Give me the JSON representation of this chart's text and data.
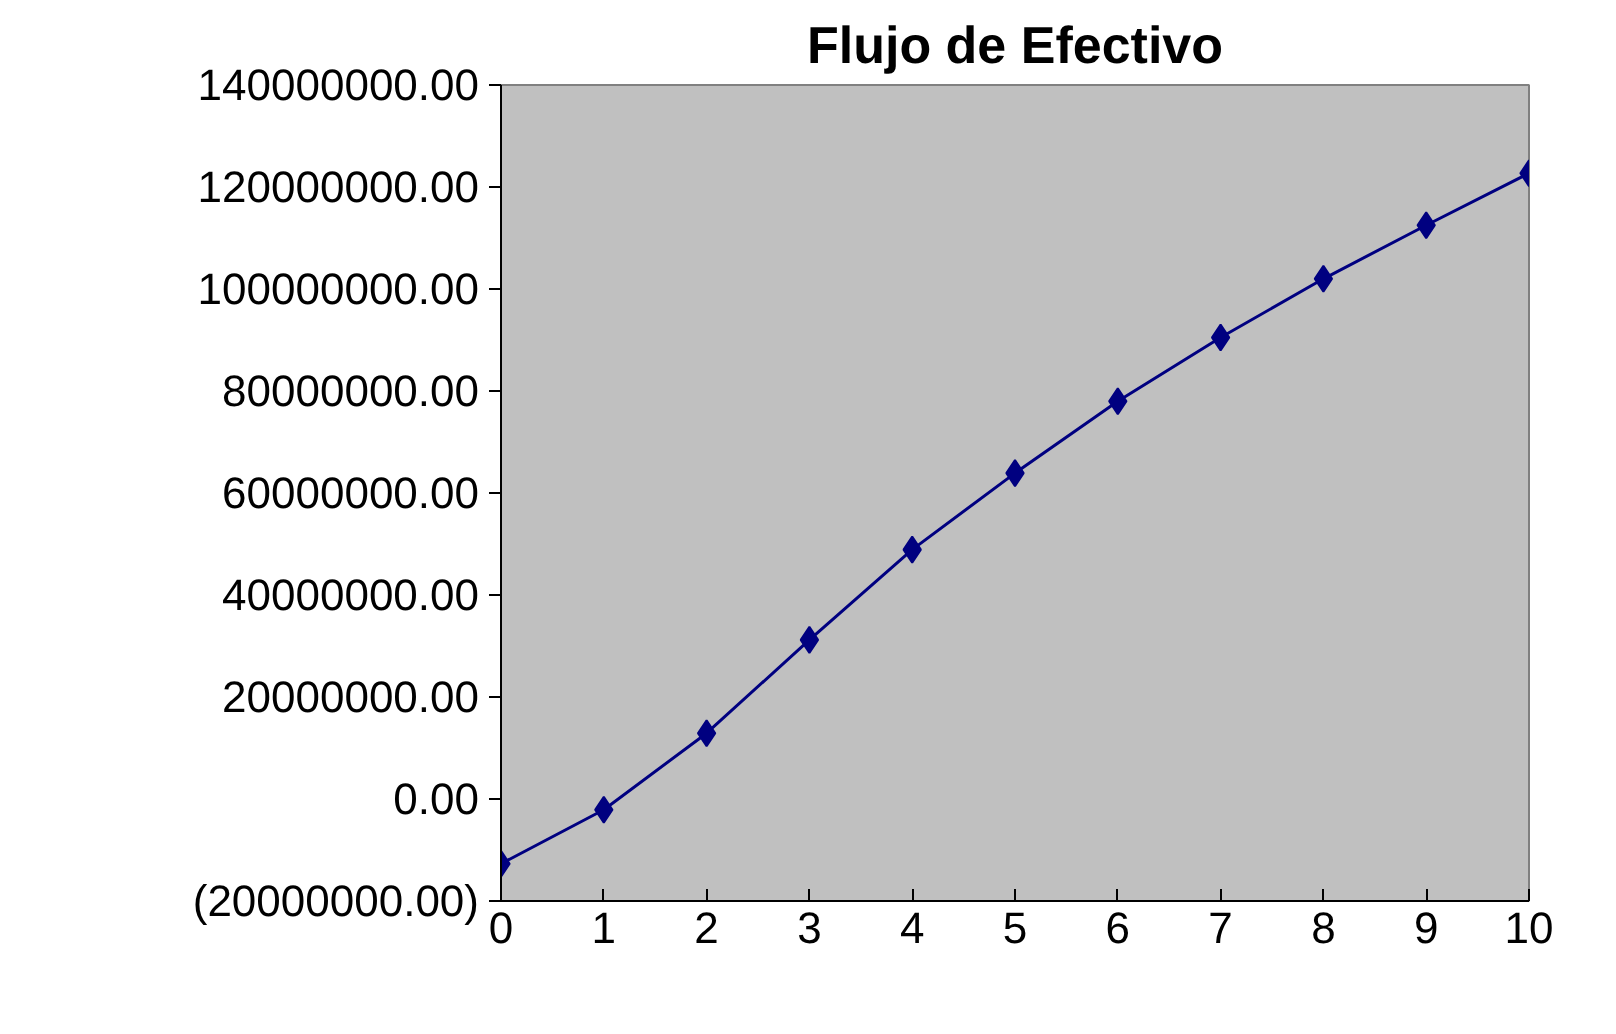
{
  "chart_data": {
    "type": "line",
    "title": "Flujo de Efectivo",
    "x": [
      0,
      1,
      2,
      3,
      4,
      5,
      6,
      7,
      8,
      9,
      10
    ],
    "series": [
      {
        "color": "#000080",
        "values": [
          -12700000,
          -2100000,
          12900000,
          31200000,
          48900000,
          63900000,
          78000000,
          90500000,
          102000000,
          112500000,
          122700000
        ]
      }
    ],
    "xlim": [
      0,
      10
    ],
    "xticks": [
      0,
      1,
      2,
      3,
      4,
      5,
      6,
      7,
      8,
      9,
      10
    ],
    "ylim": [
      -20000000,
      140000000
    ],
    "yticks": [
      {
        "value": -20000000,
        "label": "(20000000.00)"
      },
      {
        "value": 0,
        "label": "0.00"
      },
      {
        "value": 20000000,
        "label": "20000000.00"
      },
      {
        "value": 40000000,
        "label": "40000000.00"
      },
      {
        "value": 60000000,
        "label": "60000000.00"
      },
      {
        "value": 80000000,
        "label": "80000000.00"
      },
      {
        "value": 100000000,
        "label": "100000000.00"
      },
      {
        "value": 120000000,
        "label": "120000000.00"
      },
      {
        "value": 140000000,
        "label": "140000000.00"
      }
    ],
    "marker": "diamond",
    "line_style": "solid",
    "grid": false
  }
}
